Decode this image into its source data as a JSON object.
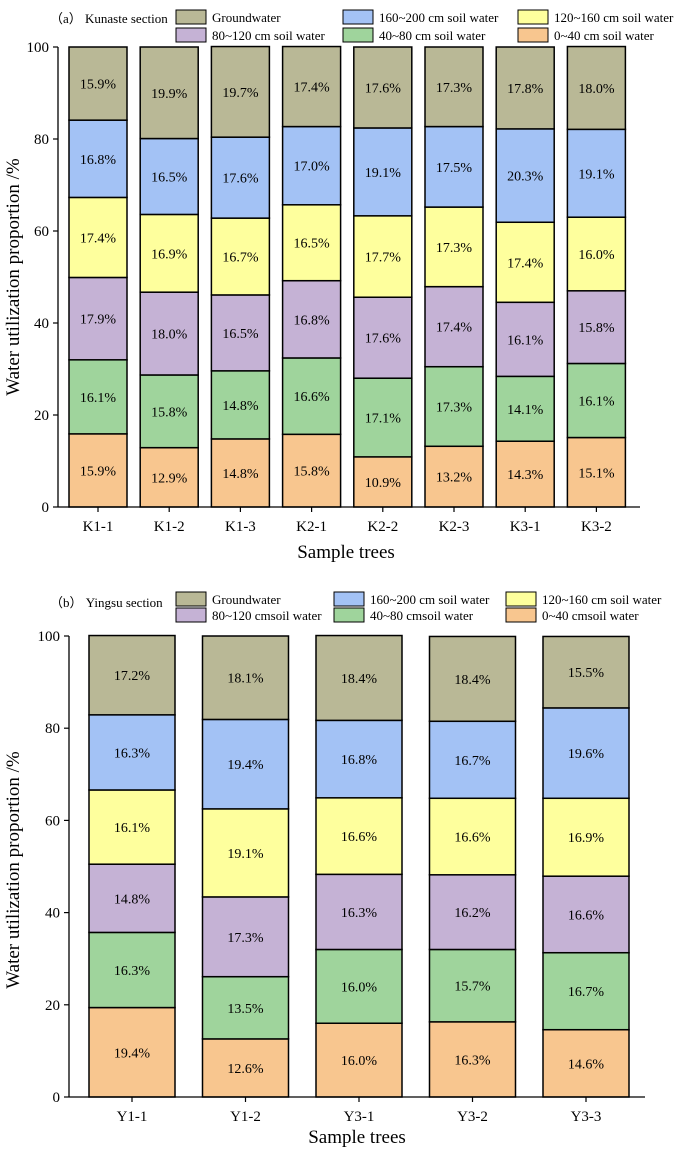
{
  "chart_data": [
    {
      "type": "bar",
      "stacked": true,
      "panel_label": "（a） Kunaste section",
      "title": "",
      "xlabel": "Sample trees",
      "ylabel": "Water utilization proportion /%",
      "ylim": [
        0,
        100
      ],
      "yticks": [
        0,
        20,
        40,
        60,
        80,
        100
      ],
      "categories": [
        "K1-1",
        "K1-2",
        "K1-3",
        "K2-1",
        "K2-2",
        "K2-3",
        "K3-1",
        "K3-2"
      ],
      "legend": [
        "Groundwater",
        "160~200 cm soil water",
        "120~160 cm soil water",
        "80~120 cm soil water",
        "40~80 cm soil water",
        "0~40 cm soil water"
      ],
      "series": [
        {
          "name": "0~40 cm soil water",
          "color": "#f8c68f",
          "values": [
            15.9,
            12.9,
            14.8,
            15.8,
            10.9,
            13.2,
            14.3,
            15.1
          ],
          "labels": [
            "15.9%",
            "12.9%",
            "14.8%",
            "15.8%",
            "10.9%",
            "13.2%",
            "14.3%",
            "15.1%"
          ]
        },
        {
          "name": "40~80 cm soil water",
          "color": "#9fd49c",
          "values": [
            16.1,
            15.8,
            14.8,
            16.6,
            17.1,
            17.3,
            14.1,
            16.1
          ],
          "labels": [
            "16.1%",
            "15.8%",
            "14.8%",
            "16.6%",
            "17.1%",
            "17.3%",
            "14.1%",
            "16.1%"
          ]
        },
        {
          "name": "80~120 cm soil water",
          "color": "#c5b2d5",
          "values": [
            17.9,
            18.0,
            16.5,
            16.8,
            17.6,
            17.4,
            16.1,
            15.8
          ],
          "labels": [
            "17.9%",
            "18.0%",
            "16.5%",
            "16.8%",
            "17.6%",
            "17.4%",
            "16.1%",
            "15.8%"
          ]
        },
        {
          "name": "120~160 cm soil water",
          "color": "#feff9d",
          "values": [
            17.4,
            16.9,
            16.7,
            16.5,
            17.7,
            17.3,
            17.4,
            16.0
          ],
          "labels": [
            "17.4%",
            "16.9%",
            "16.7%",
            "16.5%",
            "17.7%",
            "17.3%",
            "17.4%",
            "16.0%"
          ]
        },
        {
          "name": "160~200 cm soil water",
          "color": "#a3c2f5",
          "values": [
            16.8,
            16.5,
            17.6,
            17.0,
            19.1,
            17.5,
            20.3,
            19.1
          ],
          "labels": [
            "16.8%",
            "16.5%",
            "17.6%",
            "17.0%",
            "19.1%",
            "17.5%",
            "20.3%",
            "19.1%"
          ]
        },
        {
          "name": "Groundwater",
          "color": "#b9b896",
          "values": [
            15.9,
            19.9,
            19.7,
            17.4,
            17.6,
            17.3,
            17.8,
            18.0
          ],
          "labels": [
            "15.9%",
            "19.9%",
            "19.7%",
            "17.4%",
            "17.6%",
            "17.3%",
            "17.8%",
            "18.0%"
          ]
        }
      ]
    },
    {
      "type": "bar",
      "stacked": true,
      "panel_label": "（b） Yingsu section",
      "title": "",
      "xlabel": "Sample trees",
      "ylabel": "Water utilization proportion /%",
      "ylim": [
        0,
        100
      ],
      "yticks": [
        0,
        20,
        40,
        60,
        80,
        100
      ],
      "categories": [
        "Y1-1",
        "Y1-2",
        "Y3-1",
        "Y3-2",
        "Y3-3"
      ],
      "legend": [
        "Groundwater",
        "160~200 cm soil water",
        "120~160 cm soil water",
        "80~120 cmsoil water",
        "40~80 cmsoil water",
        "0~40 cmsoil water"
      ],
      "series": [
        {
          "name": "0~40 cmsoil water",
          "color": "#f8c68f",
          "values": [
            19.4,
            12.6,
            16.0,
            16.3,
            14.6
          ],
          "labels": [
            "19.4%",
            "12.6%",
            "16.0%",
            "16.3%",
            "14.6%"
          ]
        },
        {
          "name": "40~80 cmsoil water",
          "color": "#9fd49c",
          "values": [
            16.3,
            13.5,
            16.0,
            15.7,
            16.7
          ],
          "labels": [
            "16.3%",
            "13.5%",
            "16.0%",
            "15.7%",
            "16.7%"
          ]
        },
        {
          "name": "80~120 cmsoil water",
          "color": "#c5b2d5",
          "values": [
            14.8,
            17.3,
            16.3,
            16.2,
            16.6
          ],
          "labels": [
            "14.8%",
            "17.3%",
            "16.3%",
            "16.2%",
            "16.6%"
          ]
        },
        {
          "name": "120~160 cm soil water",
          "color": "#feff9d",
          "values": [
            16.1,
            19.1,
            16.6,
            16.6,
            16.9
          ],
          "labels": [
            "16.1%",
            "19.1%",
            "16.6%",
            "16.6%",
            "16.9%"
          ]
        },
        {
          "name": "160~200 cm soil water",
          "color": "#a3c2f5",
          "values": [
            16.3,
            19.4,
            16.8,
            16.7,
            19.6
          ],
          "labels": [
            "16.3%",
            "19.4%",
            "16.8%",
            "16.7%",
            "19.6%"
          ]
        },
        {
          "name": "Groundwater",
          "color": "#b9b896",
          "values": [
            17.2,
            18.1,
            18.4,
            18.4,
            15.5
          ],
          "labels": [
            "17.2%",
            "18.1%",
            "18.4%",
            "18.4%",
            "15.5%"
          ]
        }
      ]
    }
  ]
}
